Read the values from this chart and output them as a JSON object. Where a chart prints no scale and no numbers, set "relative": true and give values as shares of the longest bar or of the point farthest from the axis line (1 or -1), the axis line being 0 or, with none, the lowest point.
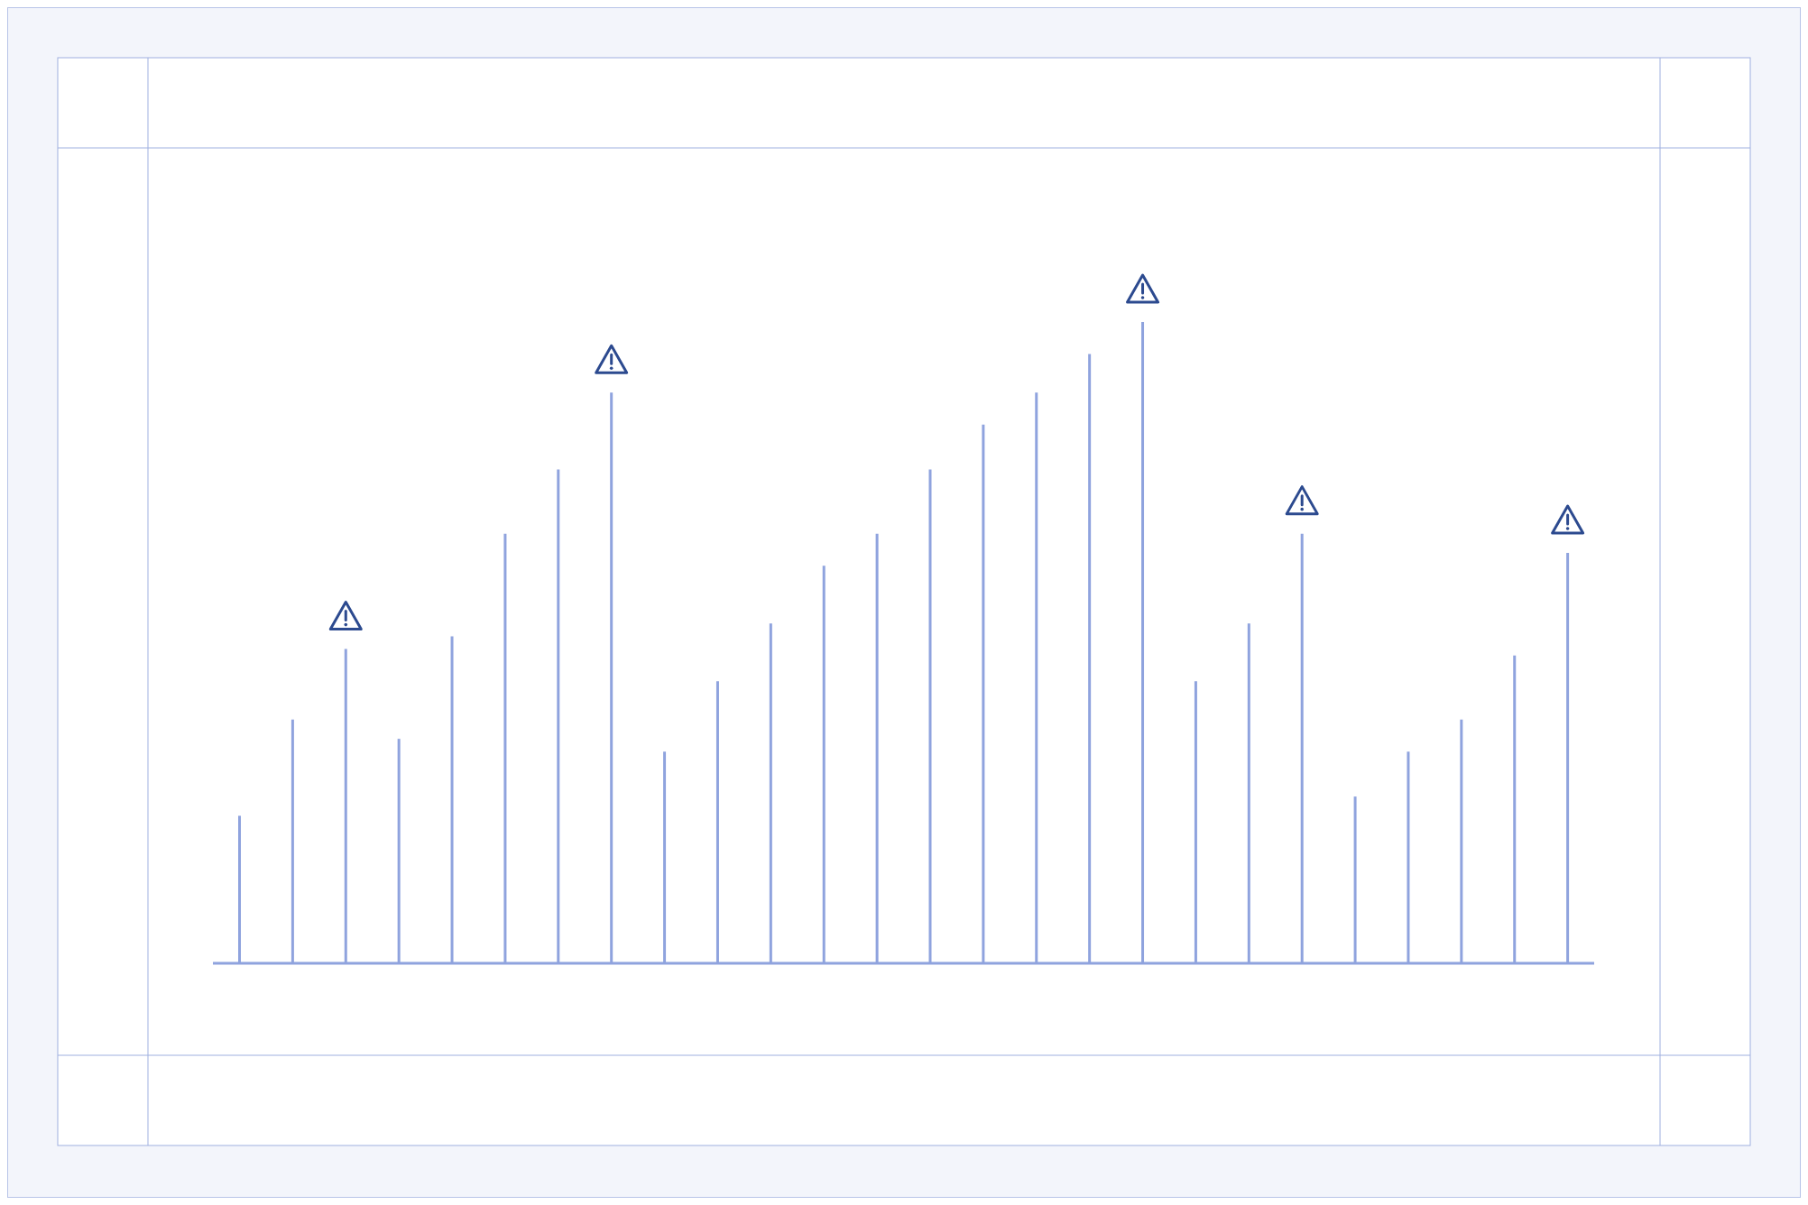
{
  "chart_data": {
    "type": "bar",
    "relative": true,
    "color": "#8fa3de",
    "categories": [
      null,
      null,
      null,
      null,
      null,
      null,
      null,
      null,
      null,
      null,
      null,
      null,
      null,
      null,
      null,
      null,
      null,
      null,
      null,
      null,
      null,
      null,
      null,
      null,
      null,
      null
    ],
    "values": [
      0.23,
      0.38,
      0.49,
      0.35,
      0.51,
      0.67,
      0.77,
      0.89,
      0.33,
      0.44,
      0.53,
      0.62,
      0.67,
      0.77,
      0.84,
      0.89,
      0.95,
      1,
      0.44,
      0.53,
      0.67,
      0.26,
      0.33,
      0.38,
      0.48,
      0.64
    ],
    "grid": false,
    "legend": false
  }
}
